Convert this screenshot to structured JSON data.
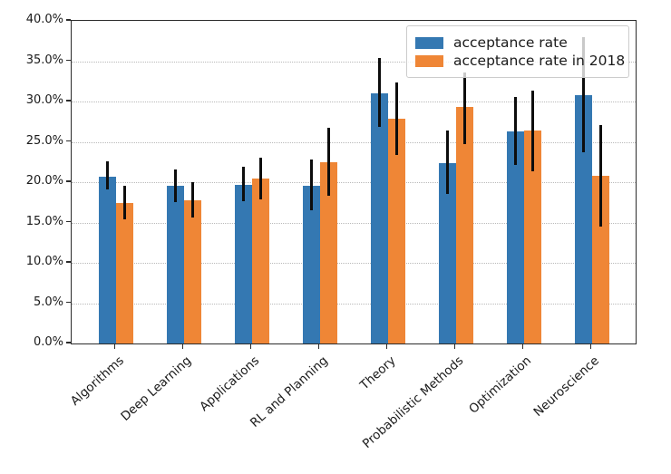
{
  "chart_data": {
    "type": "bar",
    "title": "",
    "xlabel": "",
    "ylabel": "",
    "categories": [
      "Algorithms",
      "Deep Learning",
      "Applications",
      "RL and Planning",
      "Theory",
      "Probabilistic Methods",
      "Optimization",
      "Neuroscience"
    ],
    "series": [
      {
        "name": "acceptance rate",
        "color": "#3478b2",
        "values": [
          20.7,
          19.5,
          19.7,
          19.6,
          31.0,
          22.4,
          26.3,
          30.8
        ],
        "whisker_low": [
          19.1,
          17.5,
          17.6,
          16.5,
          26.8,
          18.5,
          22.1,
          23.7
        ],
        "whisker_high": [
          22.6,
          21.6,
          21.9,
          22.8,
          35.4,
          26.4,
          30.6,
          38.0
        ]
      },
      {
        "name": "acceptance rate in 2018",
        "color": "#ef8636",
        "values": [
          17.4,
          17.8,
          20.5,
          22.5,
          27.9,
          29.3,
          26.4,
          20.8
        ],
        "whisker_low": [
          15.4,
          15.6,
          17.9,
          18.3,
          23.4,
          24.7,
          21.4,
          14.5
        ],
        "whisker_high": [
          19.6,
          20.0,
          23.0,
          26.7,
          32.4,
          33.6,
          31.4,
          27.1
        ]
      }
    ],
    "ylim": [
      0,
      40
    ],
    "ytick_step": 5,
    "ytick_labels": [
      "0.0%",
      "5.0%",
      "10.0%",
      "15.0%",
      "20.0%",
      "25.0%",
      "30.0%",
      "35.0%",
      "40.0%"
    ],
    "grid": "horizontal-dotted",
    "legend_position": "upper-right",
    "error_bar_color": "#0d0d0d"
  }
}
